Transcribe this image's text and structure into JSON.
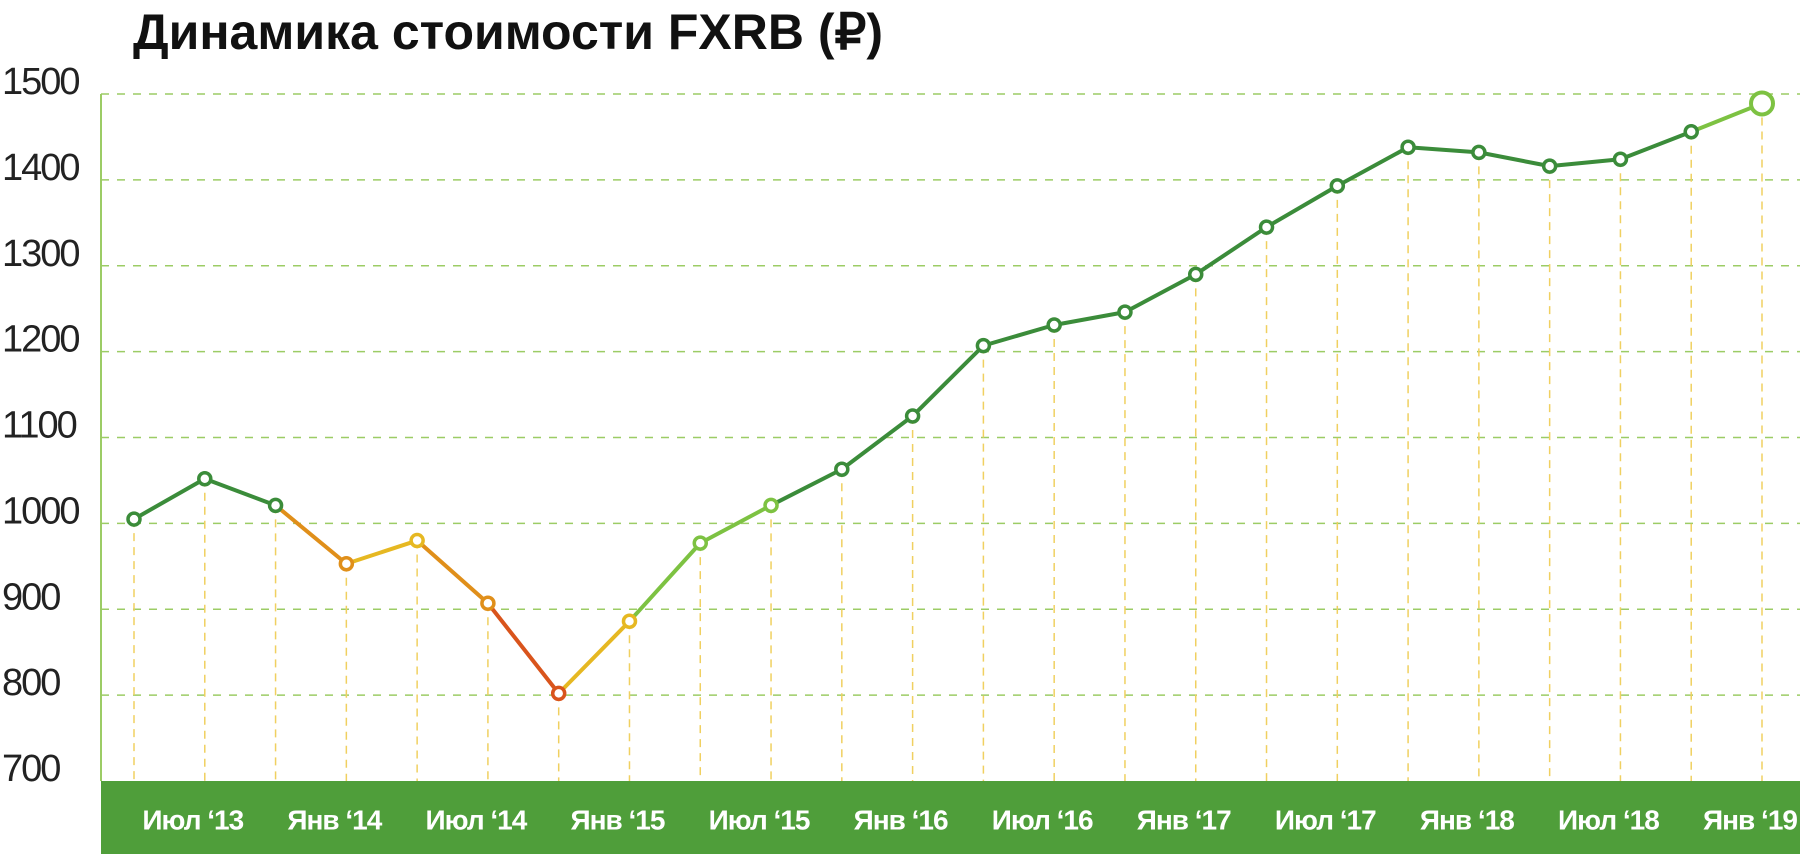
{
  "chart_data": {
    "type": "line",
    "title": "Динамика стоимости FXRB (₽)",
    "categories": [
      null,
      "Июл ‘13",
      null,
      "Янв ‘14",
      null,
      "Июл ‘14",
      null,
      "Янв ‘15",
      null,
      "Июл ‘15",
      null,
      "Янв ‘16",
      null,
      "Июл ‘16",
      null,
      "Янв ‘17",
      null,
      "Июл ‘17",
      null,
      "Янв ‘18",
      null,
      "Июл ‘18",
      null,
      "Янв ‘19"
    ],
    "values": [
      1005,
      1052,
      1021,
      953,
      980,
      907,
      802,
      886,
      977,
      1021,
      1063,
      1125,
      1207,
      1231,
      1246,
      1290,
      1345,
      1393,
      1438,
      1432,
      1416,
      1424,
      1456,
      1489
    ],
    "point_colors": [
      "#3b8c3a",
      "#3b8c3a",
      "#3b8c3a",
      "#e08f1a",
      "#e6b822",
      "#e08f1a",
      "#d9541c",
      "#e6b822",
      "#7dc242",
      "#7dc242",
      "#3b8c3a",
      "#3b8c3a",
      "#3b8c3a",
      "#3b8c3a",
      "#3b8c3a",
      "#3b8c3a",
      "#3b8c3a",
      "#3b8c3a",
      "#3b8c3a",
      "#3b8c3a",
      "#3b8c3a",
      "#3b8c3a",
      "#3b8c3a",
      "#7dc242"
    ],
    "ylim": [
      700,
      1500
    ],
    "yticks": [
      700,
      800,
      900,
      1000,
      1100,
      1200,
      1300,
      1400,
      1500
    ],
    "grid": true
  }
}
